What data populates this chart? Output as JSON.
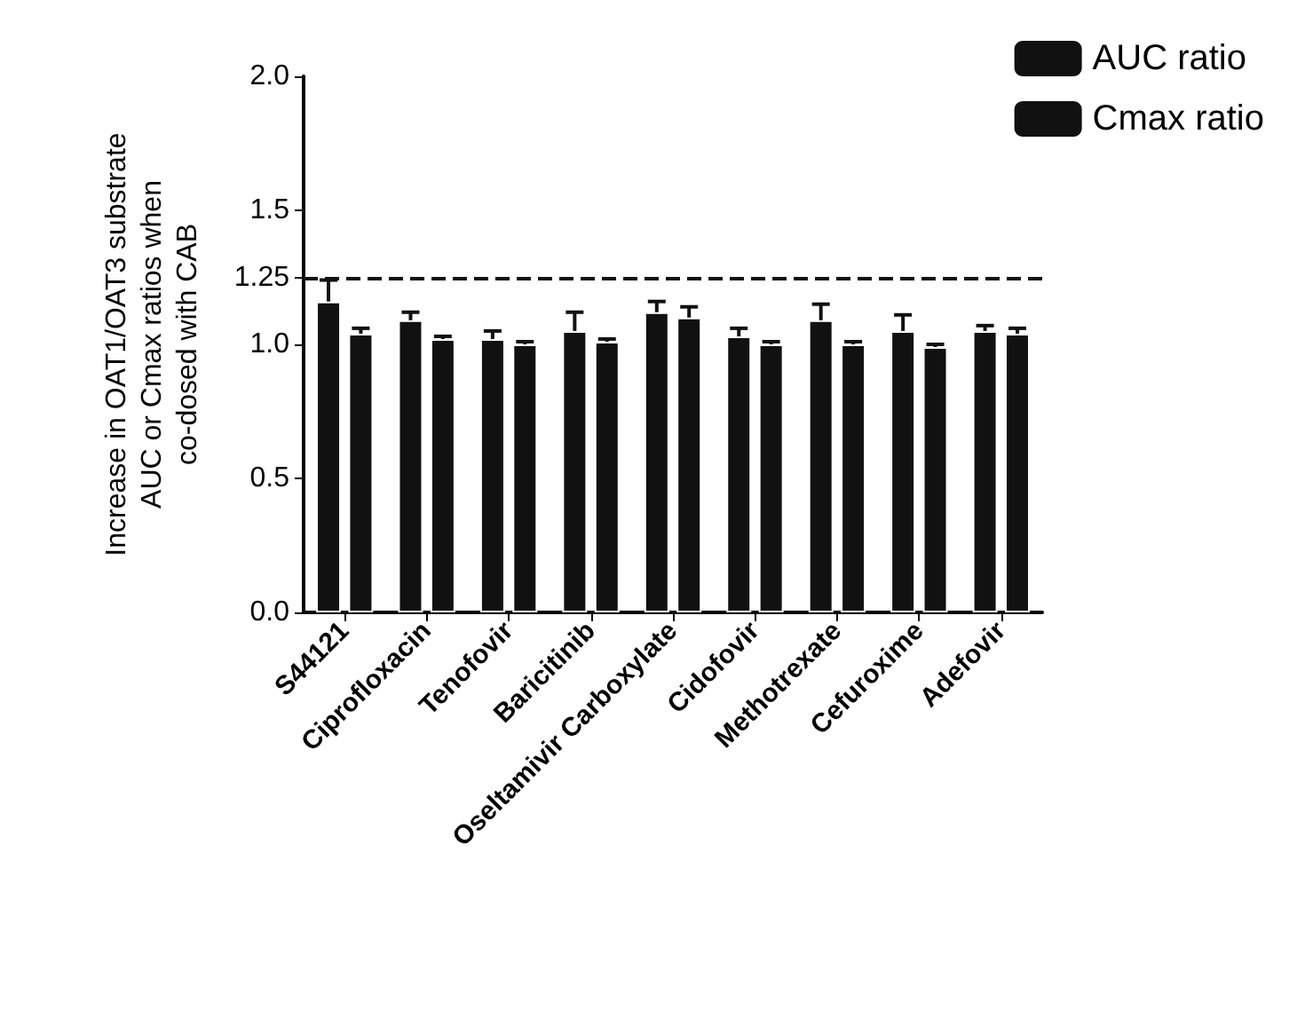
{
  "chart_data": {
    "type": "bar",
    "ylabel": "Increase in OAT1/OAT3 substrate\nAUC or Cmax ratios when\nco-dosed with CAB",
    "categories": [
      "S44121",
      "Ciprofloxacin",
      "Tenofovir",
      "Baricitinib",
      "Oseltamivir Carboxylate",
      "Cidofovir",
      "Methotrexate",
      "Cefuroxime",
      "Adefovir"
    ],
    "series": [
      {
        "name": "AUC ratio",
        "color": "#111111",
        "values": [
          1.16,
          1.09,
          1.02,
          1.05,
          1.12,
          1.03,
          1.09,
          1.05,
          1.05
        ],
        "errors": [
          0.08,
          0.03,
          0.03,
          0.07,
          0.04,
          0.03,
          0.06,
          0.06,
          0.02
        ]
      },
      {
        "name": "Cmax ratio",
        "color": "#111111",
        "values": [
          1.04,
          1.02,
          1.0,
          1.01,
          1.1,
          1.0,
          1.0,
          0.99,
          1.04
        ],
        "errors": [
          0.02,
          0.01,
          0.01,
          0.01,
          0.04,
          0.01,
          0.01,
          0.01,
          0.02
        ]
      }
    ],
    "ylim": [
      0,
      2
    ],
    "yticks": [
      {
        "value": 0,
        "label": "0.0"
      },
      {
        "value": 0.5,
        "label": "0.5"
      },
      {
        "value": 1,
        "label": "1.0"
      },
      1.25,
      {
        "value": 1.5,
        "label": "1.5"
      },
      {
        "value": 2,
        "label": "2.0"
      }
    ],
    "ref_lines": [
      {
        "axis": "y",
        "value": 1.25,
        "line_style": "dashed",
        "color": "#111111"
      }
    ],
    "legend": "top right",
    "grid": false
  }
}
